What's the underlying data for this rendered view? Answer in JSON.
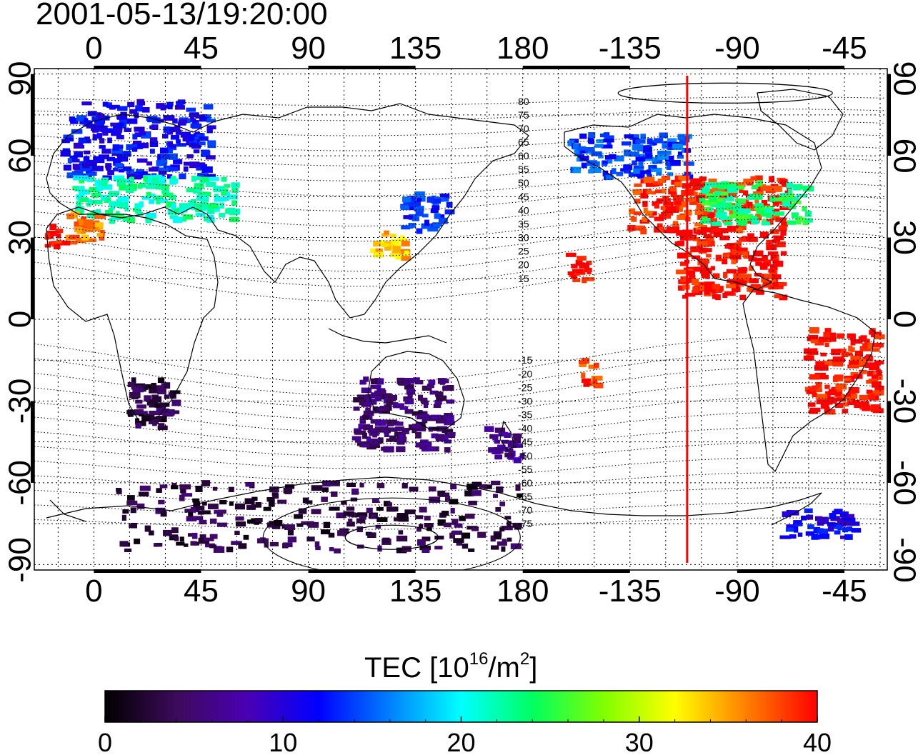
{
  "timestamp": "2001-05-13/19:20:00",
  "map": {
    "lon_ticks": [
      "0",
      "45",
      "90",
      "135",
      "180",
      "-135",
      "-90",
      "-45"
    ],
    "lon_values": [
      0,
      45,
      90,
      135,
      180,
      225,
      270,
      315
    ],
    "lat_ticks": [
      "90",
      "60",
      "30",
      "0",
      "-30",
      "-60",
      "-90"
    ],
    "lat_values": [
      90,
      60,
      30,
      0,
      -30,
      -60,
      -90
    ],
    "lon_range": [
      -25,
      333
    ],
    "lat_range": [
      -92,
      92
    ],
    "grid": "dotted 15-degree graticule",
    "terminator_lon": 249,
    "terminator_color": "#ff0000",
    "mlat_labels_north": [
      "80",
      "75",
      "70",
      "65",
      "60",
      "55",
      "50",
      "45",
      "40",
      "35",
      "30",
      "25",
      "20",
      "15"
    ],
    "mlat_values_north": [
      80,
      75,
      70,
      65,
      60,
      55,
      50,
      45,
      40,
      35,
      30,
      25,
      20,
      15
    ],
    "mlat_labels_south": [
      "-15",
      "-20",
      "-25",
      "-30",
      "-35",
      "-40",
      "-45",
      "-50",
      "-55",
      "-60",
      "-65",
      "-70",
      "-75"
    ],
    "mlat_values_south": [
      -15,
      -20,
      -25,
      -30,
      -35,
      -40,
      -45,
      -50,
      -55,
      -60,
      -65,
      -70,
      -75
    ]
  },
  "colorbar": {
    "title_prefix": "TEC  [10",
    "title_sup1": "16",
    "title_mid": "/m",
    "title_sup2": "2",
    "title_suffix": "]",
    "tick_labels": [
      "0",
      "10",
      "20",
      "30",
      "40"
    ],
    "tick_values": [
      0,
      10,
      20,
      30,
      40
    ],
    "range": [
      0,
      40
    ],
    "colorscale": [
      "#000000",
      "#3d0a5a",
      "#4a00b4",
      "#0000ff",
      "#0080ff",
      "#00ffff",
      "#00ff60",
      "#80ff00",
      "#ffff00",
      "#ff8000",
      "#ff0000"
    ]
  },
  "chart_data": {
    "type": "heatmap",
    "title": "2001-05-13/19:20:00",
    "xlabel": "",
    "ylabel": "",
    "xlim": [
      -25,
      333
    ],
    "ylim": [
      -92,
      92
    ],
    "value_range": [
      0,
      40
    ],
    "regions": [
      {
        "lon": [
          -12,
          50
        ],
        "lat": [
          52,
          80
        ],
        "tec": 12
      },
      {
        "lon": [
          -8,
          60
        ],
        "lat": [
          36,
          52
        ],
        "tec": 22
      },
      {
        "lon": [
          -10,
          5
        ],
        "lat": [
          28,
          40
        ],
        "tec": 36
      },
      {
        "lon": [
          -20,
          -12
        ],
        "lat": [
          26,
          34
        ],
        "tec": 40
      },
      {
        "lon": [
          130,
          150
        ],
        "lat": [
          32,
          46
        ],
        "tec": 13
      },
      {
        "lon": [
          118,
          135
        ],
        "lat": [
          22,
          32
        ],
        "tec": 34
      },
      {
        "lon": [
          200,
          250
        ],
        "lat": [
          52,
          68
        ],
        "tec": 14
      },
      {
        "lon": [
          225,
          292
        ],
        "lat": [
          32,
          52
        ],
        "tec": 39
      },
      {
        "lon": [
          255,
          300
        ],
        "lat": [
          35,
          50
        ],
        "tec": 24
      },
      {
        "lon": [
          245,
          290
        ],
        "lat": [
          8,
          32
        ],
        "tec": 40
      },
      {
        "lon": [
          300,
          330
        ],
        "lat": [
          -34,
          -4
        ],
        "tec": 40
      },
      {
        "lon": [
          15,
          35
        ],
        "lat": [
          -40,
          -22
        ],
        "tec": 3
      },
      {
        "lon": [
          110,
          150
        ],
        "lat": [
          -48,
          -22
        ],
        "tec": 5
      },
      {
        "lon": [
          165,
          180
        ],
        "lat": [
          -52,
          -40
        ],
        "tec": 6
      },
      {
        "lon": [
          10,
          180
        ],
        "lat": [
          -85,
          -60
        ],
        "tec": 3
      },
      {
        "lon": [
          290,
          320
        ],
        "lat": [
          -80,
          -70
        ],
        "tec": 11
      },
      {
        "lon": [
          200,
          210
        ],
        "lat": [
          14,
          24
        ],
        "tec": 40
      },
      {
        "lon": [
          205,
          212
        ],
        "lat": [
          -25,
          -15
        ],
        "tec": 38
      }
    ]
  }
}
